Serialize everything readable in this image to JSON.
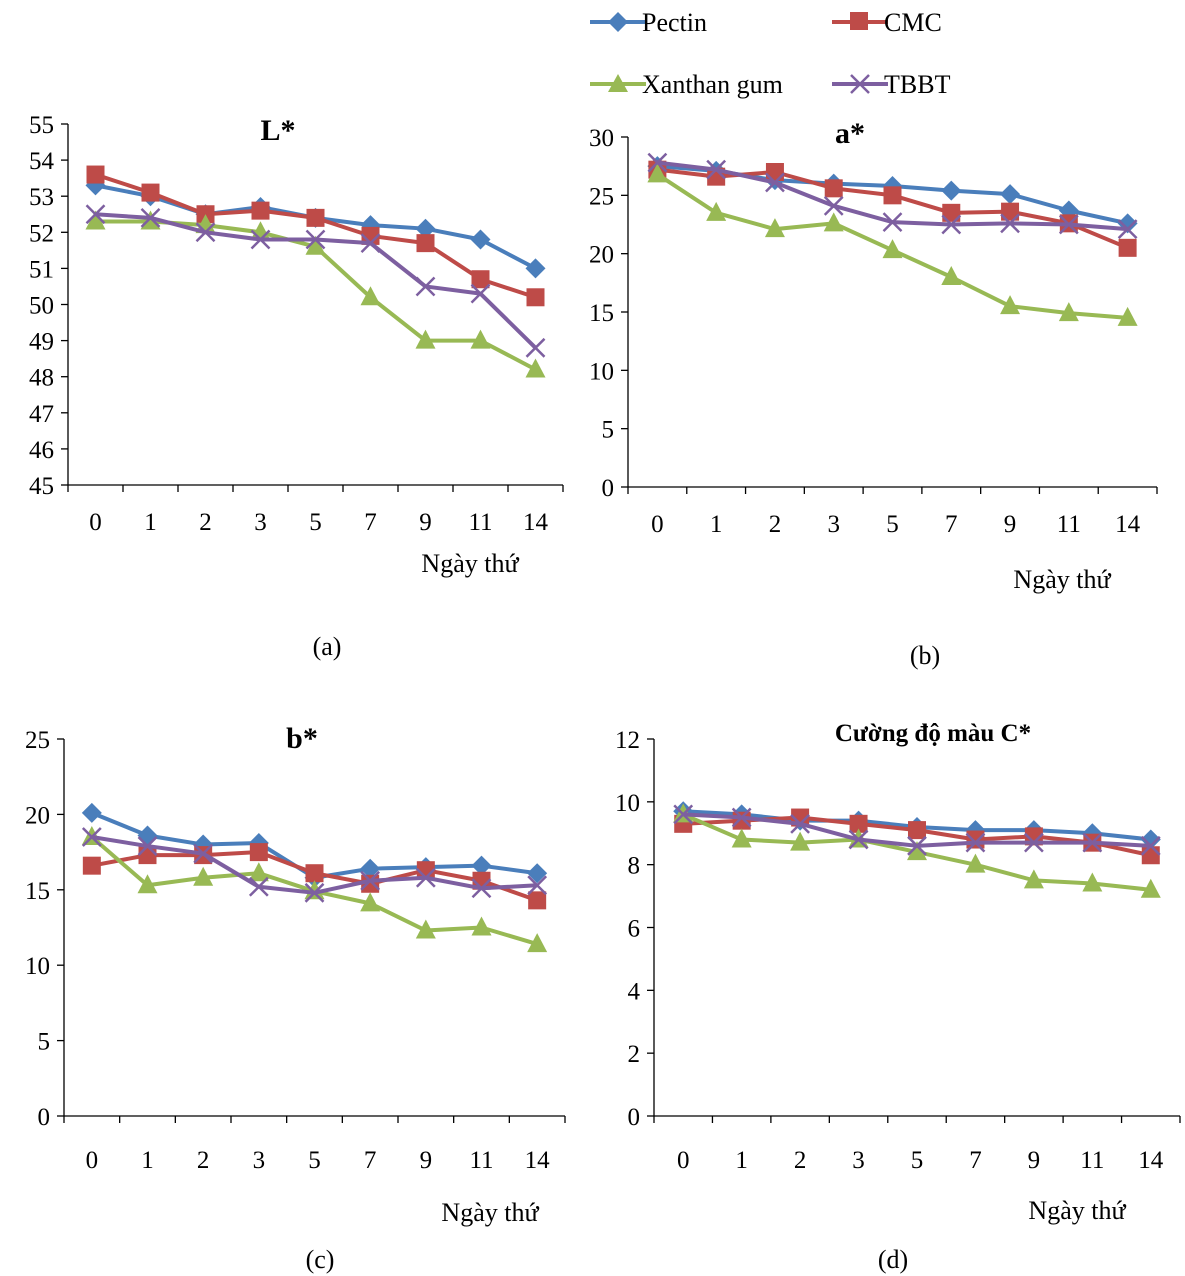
{
  "legend": [
    {
      "name": "Pectin",
      "color": "#4a7ebb",
      "marker": "diamond"
    },
    {
      "name": "CMC",
      "color": "#be4b48",
      "marker": "square"
    },
    {
      "name": "Xanthan gum",
      "color": "#98b954",
      "marker": "triangle"
    },
    {
      "name": "TBBT",
      "color": "#7d5fa0",
      "marker": "x"
    }
  ],
  "chart_data": [
    {
      "type": "line",
      "id": "a",
      "title": "L*",
      "caption": "(a)",
      "xlabel": "Ngày thứ",
      "categories": [
        "0",
        "1",
        "2",
        "3",
        "5",
        "7",
        "9",
        "11",
        "14"
      ],
      "ylim": [
        45,
        55
      ],
      "yticks": [
        45,
        46,
        47,
        48,
        49,
        50,
        51,
        52,
        53,
        54,
        55
      ],
      "series": [
        {
          "name": "Pectin",
          "values": [
            53.3,
            53.0,
            52.5,
            52.7,
            52.4,
            52.2,
            52.1,
            51.8,
            51.0
          ]
        },
        {
          "name": "CMC",
          "values": [
            53.6,
            53.1,
            52.5,
            52.6,
            52.4,
            51.9,
            51.7,
            50.7,
            50.2
          ]
        },
        {
          "name": "Xanthan gum",
          "values": [
            52.3,
            52.3,
            52.2,
            52.0,
            51.6,
            50.2,
            49.0,
            49.0,
            48.2
          ]
        },
        {
          "name": "TBBT",
          "values": [
            52.5,
            52.4,
            52.0,
            51.8,
            51.8,
            51.7,
            50.5,
            50.3,
            48.8
          ]
        }
      ]
    },
    {
      "type": "line",
      "id": "b",
      "title": "a*",
      "caption": "(b)",
      "xlabel": "Ngày thứ",
      "categories": [
        "0",
        "1",
        "2",
        "3",
        "5",
        "7",
        "9",
        "11",
        "14"
      ],
      "ylim": [
        0,
        30
      ],
      "yticks": [
        0,
        5,
        10,
        15,
        20,
        25,
        30
      ],
      "series": [
        {
          "name": "Pectin",
          "values": [
            27.5,
            27.1,
            26.3,
            26.0,
            25.8,
            25.4,
            25.1,
            23.7,
            22.6
          ]
        },
        {
          "name": "CMC",
          "values": [
            27.2,
            26.6,
            27.0,
            25.6,
            25.0,
            23.5,
            23.6,
            22.6,
            20.5
          ]
        },
        {
          "name": "Xanthan gum",
          "values": [
            26.8,
            23.5,
            22.1,
            22.6,
            20.3,
            18.0,
            15.5,
            14.9,
            14.5
          ]
        },
        {
          "name": "TBBT",
          "values": [
            27.8,
            27.2,
            26.1,
            24.1,
            22.7,
            22.5,
            22.6,
            22.5,
            22.1
          ]
        }
      ]
    },
    {
      "type": "line",
      "id": "c",
      "title": "b*",
      "caption": "(c)",
      "xlabel": "Ngày thứ",
      "categories": [
        "0",
        "1",
        "2",
        "3",
        "5",
        "7",
        "9",
        "11",
        "14"
      ],
      "ylim": [
        0,
        25
      ],
      "yticks": [
        0,
        5,
        10,
        15,
        20,
        25
      ],
      "series": [
        {
          "name": "Pectin",
          "values": [
            20.1,
            18.6,
            18.0,
            18.1,
            15.8,
            16.4,
            16.5,
            16.6,
            16.1
          ]
        },
        {
          "name": "CMC",
          "values": [
            16.6,
            17.3,
            17.3,
            17.5,
            16.1,
            15.4,
            16.3,
            15.6,
            14.3
          ]
        },
        {
          "name": "Xanthan gum",
          "values": [
            18.5,
            15.3,
            15.8,
            16.1,
            14.9,
            14.1,
            12.3,
            12.5,
            11.4
          ]
        },
        {
          "name": "TBBT",
          "values": [
            18.5,
            17.9,
            17.4,
            15.2,
            14.8,
            15.6,
            15.8,
            15.1,
            15.3
          ]
        }
      ]
    },
    {
      "type": "line",
      "id": "d",
      "title": "Cường độ màu C*",
      "caption": "(d)",
      "xlabel": "Ngày thứ",
      "categories": [
        "0",
        "1",
        "2",
        "3",
        "5",
        "7",
        "9",
        "11",
        "14"
      ],
      "ylim": [
        0,
        12
      ],
      "yticks": [
        0,
        2,
        4,
        6,
        8,
        10,
        12
      ],
      "series": [
        {
          "name": "Pectin",
          "values": [
            9.7,
            9.6,
            9.4,
            9.4,
            9.2,
            9.1,
            9.1,
            9.0,
            8.8
          ]
        },
        {
          "name": "CMC",
          "values": [
            9.3,
            9.4,
            9.5,
            9.3,
            9.1,
            8.8,
            8.9,
            8.7,
            8.3
          ]
        },
        {
          "name": "Xanthan gum",
          "values": [
            9.6,
            8.8,
            8.7,
            8.8,
            8.4,
            8.0,
            7.5,
            7.4,
            7.2
          ]
        },
        {
          "name": "TBBT",
          "values": [
            9.6,
            9.5,
            9.3,
            8.8,
            8.6,
            8.7,
            8.7,
            8.7,
            8.6
          ]
        }
      ]
    }
  ]
}
